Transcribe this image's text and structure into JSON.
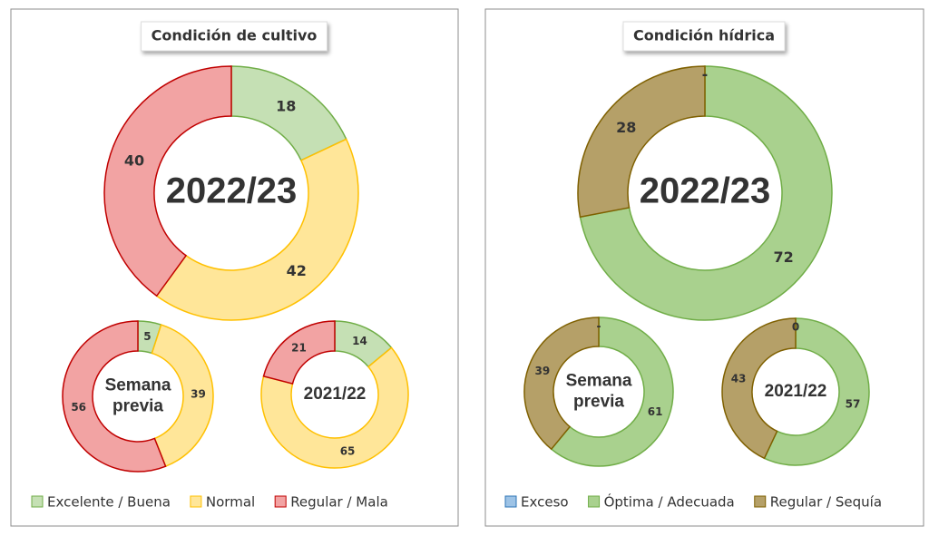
{
  "chart_data": [
    {
      "type": "donut",
      "title": "Condición de cultivo",
      "categories": [
        "Excelente / Buena",
        "Normal",
        "Regular / Mala"
      ],
      "colors": [
        "#c5e0b4",
        "#ffe699",
        "#f2a3a3"
      ],
      "border_colors": [
        "#70ad47",
        "#ffc000",
        "#c00000"
      ],
      "series": [
        {
          "name": "2022/23",
          "values": [
            18,
            42,
            40
          ]
        },
        {
          "name": "Semana previa",
          "values": [
            5,
            39,
            56
          ]
        },
        {
          "name": "2021/22",
          "values": [
            14,
            65,
            21
          ]
        }
      ]
    },
    {
      "type": "donut",
      "title": "Condición hídrica",
      "categories": [
        "Exceso",
        "Óptima / Adecuada",
        "Regular / Sequía"
      ],
      "colors": [
        "#9dc3e6",
        "#a9d18e",
        "#b5a068"
      ],
      "border_colors": [
        "#2e75b6",
        "#70ad47",
        "#7f6000"
      ],
      "series": [
        {
          "name": "2022/23",
          "values": [
            0,
            72,
            28
          ],
          "value_labels": [
            "-",
            "72",
            "28"
          ]
        },
        {
          "name": "Semana previa",
          "values": [
            0,
            61,
            39
          ],
          "value_labels": [
            "-",
            "61",
            "39"
          ]
        },
        {
          "name": "2021/22",
          "values": [
            0,
            57,
            43
          ]
        }
      ]
    }
  ]
}
